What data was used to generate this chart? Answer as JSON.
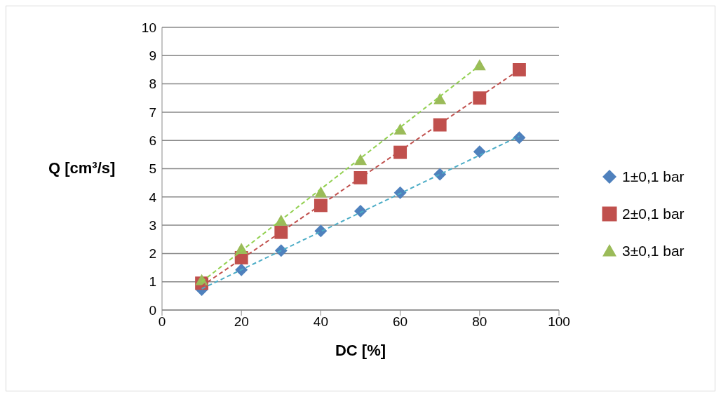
{
  "chart_data": {
    "type": "scatter",
    "xlabel": "DC [%]",
    "ylabel": "Q [cm³/s]",
    "x": [
      10,
      20,
      30,
      40,
      50,
      60,
      70,
      80,
      90
    ],
    "xlim": [
      0,
      100
    ],
    "xticks": [
      0,
      20,
      40,
      60,
      80,
      100
    ],
    "ylim": [
      0,
      10
    ],
    "yticks": [
      0,
      1,
      2,
      3,
      4,
      5,
      6,
      7,
      8,
      9,
      10
    ],
    "grid": "y",
    "legend": "right",
    "series": [
      {
        "name": "1±0,1 bar",
        "marker": "diamond",
        "color": "#4f81bd",
        "values": [
          0.72,
          1.42,
          2.1,
          2.8,
          3.5,
          4.15,
          4.8,
          5.6,
          6.1
        ]
      },
      {
        "name": "2±0,1 bar",
        "marker": "square",
        "color": "#c0504d",
        "values": [
          0.95,
          1.85,
          2.75,
          3.7,
          4.68,
          5.58,
          6.55,
          7.5,
          8.5
        ]
      },
      {
        "name": "3±0,1 bar",
        "marker": "triangle",
        "color": "#9bbb59",
        "x": [
          10,
          20,
          30,
          40,
          50,
          60,
          70,
          80
        ],
        "values": [
          1.05,
          2.15,
          3.15,
          4.15,
          5.3,
          6.38,
          7.45,
          8.65
        ]
      },
      {
        "type": "line",
        "marker": "none",
        "line_style": "dashed",
        "color": "#4bacc6",
        "x": [
          10,
          90
        ],
        "values": [
          0.75,
          6.15
        ]
      },
      {
        "type": "line",
        "marker": "none",
        "line_style": "dashed",
        "color": "#c0504d",
        "x": [
          10,
          90
        ],
        "values": [
          0.85,
          8.5
        ]
      },
      {
        "type": "line",
        "marker": "none",
        "line_style": "dashed",
        "color": "#92d050",
        "x": [
          10,
          80
        ],
        "values": [
          1.0,
          8.65
        ]
      }
    ]
  }
}
